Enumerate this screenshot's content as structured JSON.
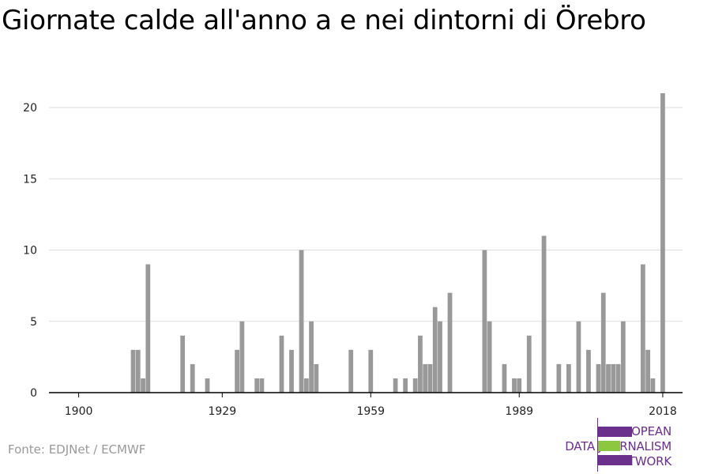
{
  "title": "Giornate calde all'anno a e nei dintorni di Örebro",
  "source": "Fonte: EDJNet / ECMWF",
  "logo": {
    "line1": "EUROPEAN",
    "line2": "DATA JOURNALISM",
    "line3": "NETWORK",
    "colors": {
      "purple": "#6b2f8c",
      "green": "#8dc63f"
    }
  },
  "colors": {
    "bar": "#999999",
    "grid": "#dddddd",
    "axis": "#000000"
  },
  "chart_data": {
    "type": "bar",
    "title": "Giornate calde all'anno a e nei dintorni di Örebro",
    "xlabel": "",
    "ylabel": "",
    "xlim": [
      1894,
      2022
    ],
    "ylim": [
      0,
      22
    ],
    "xticks": [
      1900,
      1929,
      1959,
      1989,
      2018
    ],
    "yticks": [
      0,
      5,
      10,
      15,
      20
    ],
    "grid": true,
    "x": [
      1911,
      1912,
      1913,
      1914,
      1921,
      1923,
      1926,
      1932,
      1933,
      1936,
      1937,
      1941,
      1943,
      1945,
      1946,
      1947,
      1948,
      1955,
      1959,
      1964,
      1966,
      1968,
      1969,
      1970,
      1971,
      1972,
      1973,
      1975,
      1982,
      1983,
      1986,
      1988,
      1989,
      1991,
      1994,
      1997,
      1999,
      2001,
      2003,
      2005,
      2006,
      2007,
      2008,
      2009,
      2010,
      2014,
      2015,
      2016,
      2018
    ],
    "values": [
      3,
      3,
      1,
      9,
      4,
      2,
      1,
      3,
      5,
      1,
      1,
      4,
      3,
      10,
      1,
      5,
      2,
      3,
      3,
      1,
      1,
      1,
      4,
      2,
      2,
      6,
      5,
      7,
      10,
      5,
      2,
      1,
      1,
      4,
      11,
      2,
      2,
      5,
      3,
      2,
      7,
      2,
      2,
      2,
      5,
      9,
      3,
      1,
      21
    ]
  }
}
